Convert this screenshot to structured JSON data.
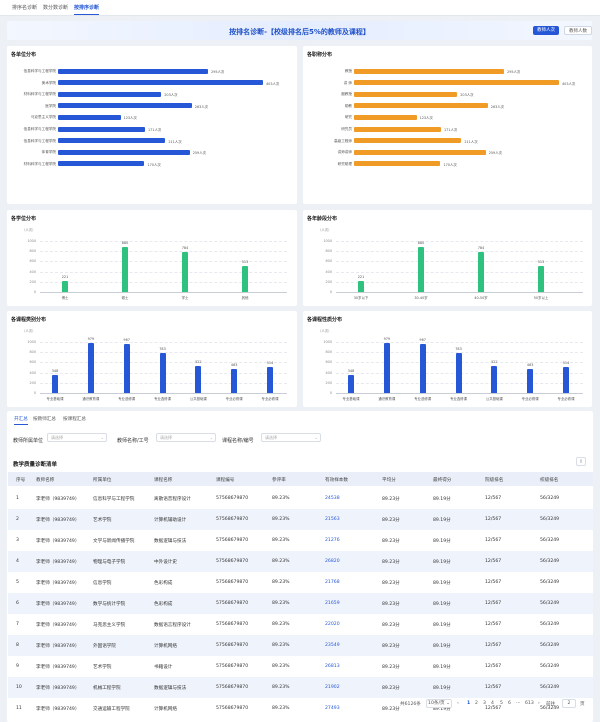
{
  "tabs": [
    "排序名诊断",
    "数分数诊断",
    "按排序诊断"
  ],
  "active_tab": 2,
  "header": {
    "title": "按排名诊断-【校级排名后5%的教师及课程】",
    "btn_primary": "教师人次",
    "btn_secondary": "教师人数"
  },
  "colors": {
    "blue": "#2557d6",
    "orange": "#ef9b25",
    "green": "#2ec27e"
  },
  "chart_data": [
    {
      "type": "bar",
      "orientation": "horizontal",
      "title": "各单位分布",
      "color": "#2557d6",
      "categories": [
        "信息科学与工程学院",
        "美术学院",
        "材料科学与工程学院",
        "医学院",
        "马克思主义学院",
        "信息科学与工程学院",
        "信息科学与工程学院",
        "体育学院",
        "材料科学与工程学院"
      ],
      "values": [
        295,
        403,
        203,
        263,
        123,
        171,
        211,
        259,
        170
      ],
      "labels": [
        "295人次",
        "403人次",
        "203人次",
        "263人次",
        "123人次",
        "171人次",
        "211人次",
        "259人次",
        "170人次"
      ]
    },
    {
      "type": "bar",
      "orientation": "horizontal",
      "title": "各职称分布",
      "color": "#ef9b25",
      "categories": [
        "教授",
        "讲 师",
        "副教授",
        "助教",
        "研究",
        "研究员",
        "高级工程师",
        "讲师讲师",
        "研究助理"
      ],
      "values": [
        295,
        403,
        203,
        263,
        123,
        171,
        211,
        259,
        170
      ],
      "labels": [
        "295人次",
        "403人次",
        "203人次",
        "263人次",
        "123人次",
        "171人次",
        "211人次",
        "259人次",
        "170人次"
      ]
    },
    {
      "type": "bar",
      "title": "各学位分布",
      "color": "#2ec27e",
      "unit": "（人次）",
      "ylim": [
        0,
        1000
      ],
      "yticks": [
        "1000",
        "800",
        "600",
        "400",
        "200",
        "0"
      ],
      "categories": [
        "博士",
        "硕士",
        "学士",
        "其他"
      ],
      "values": [
        221,
        880,
        784,
        513
      ]
    },
    {
      "type": "bar",
      "title": "各年龄段分布",
      "color": "#2ec27e",
      "unit": "（人次）",
      "ylim": [
        0,
        1000
      ],
      "yticks": [
        "1000",
        "800",
        "600",
        "400",
        "200",
        "0"
      ],
      "categories": [
        "30岁以下",
        "30-40岁",
        "40-50岁",
        "50岁以上"
      ],
      "values": [
        221,
        880,
        784,
        513
      ]
    },
    {
      "type": "bar",
      "title": "各课程类别分布",
      "color": "#2557d6",
      "unit": "（人次）",
      "ylim": [
        0,
        1000
      ],
      "yticks": [
        "1000",
        "800",
        "600",
        "400",
        "200",
        "0"
      ],
      "categories": [
        "专业基础课",
        "通识教育课",
        "专业选修课",
        "专业选修课",
        "公共基础课",
        "专业必修课",
        "专业必修课"
      ],
      "values": [
        348,
        979,
        967,
        783,
        522,
        463,
        514
      ]
    },
    {
      "type": "bar",
      "title": "各课程性质分布",
      "color": "#2557d6",
      "unit": "（人次）",
      "ylim": [
        0,
        1000
      ],
      "yticks": [
        "1000",
        "800",
        "600",
        "400",
        "200",
        "0"
      ],
      "categories": [
        "专业基础课",
        "通识教育课",
        "专业选修课",
        "专业选修课",
        "公共基础课",
        "专业必修课",
        "专业必修课"
      ],
      "values": [
        348,
        979,
        967,
        783,
        522,
        463,
        514
      ]
    }
  ],
  "sub_tabs": [
    "开汇总",
    "按教师汇总",
    "按课程汇总"
  ],
  "filters": [
    {
      "label": "教师所属单位",
      "placeholder": "请选择"
    },
    {
      "label": "教师名称/工号",
      "placeholder": "请选择"
    },
    {
      "label": "课程名称/编号",
      "placeholder": "请选择"
    }
  ],
  "table": {
    "title": "教学质量诊断清单",
    "export_icon": "⇪",
    "columns": [
      "序号",
      "教师名称",
      "所属单位",
      "课程名称",
      "课程编号",
      "参评率",
      "有效样本数",
      "平均分",
      "最终得分",
      "院级排名",
      "校级排名"
    ],
    "rows": [
      [
        "1",
        "李老师（9839749）",
        "信息科学与工程学院",
        "离散语音程序设计",
        "57568679870",
        "89.23%",
        "24538",
        "89.23分",
        "89.19分",
        "12/567",
        "56/3249"
      ],
      [
        "2",
        "李老师（9839749）",
        "艺术学院",
        "计算机辅助设计",
        "57568679870",
        "89.23%",
        "21563",
        "89.23分",
        "89.19分",
        "12/567",
        "56/3249"
      ],
      [
        "3",
        "李老师（9839749）",
        "文学与新闻传播学院",
        "数据逻辑与技法",
        "57568679870",
        "89.23%",
        "21276",
        "89.23分",
        "89.19分",
        "12/567",
        "56/3249"
      ],
      [
        "4",
        "李老师（9839749）",
        "物理与电子学院",
        "中外设计史",
        "57568679870",
        "89.23%",
        "26820",
        "89.23分",
        "89.19分",
        "12/567",
        "56/3249"
      ],
      [
        "5",
        "李老师（9839749）",
        "信息学院",
        "色彩构成",
        "57568679870",
        "89.23%",
        "21768",
        "89.23分",
        "89.19分",
        "12/567",
        "56/3249"
      ],
      [
        "6",
        "李老师（9839749）",
        "数学与统计学院",
        "色彩构成",
        "57568679870",
        "89.23%",
        "21659",
        "89.23分",
        "89.19分",
        "12/567",
        "56/3249"
      ],
      [
        "7",
        "李老师（9839749）",
        "马克思主义学院",
        "数据语言程序设计",
        "57568679870",
        "89.23%",
        "22020",
        "89.23分",
        "89.19分",
        "12/567",
        "56/3249"
      ],
      [
        "8",
        "李老师（9839749）",
        "外国语学院",
        "计算机网络",
        "57568679870",
        "89.23%",
        "23549",
        "89.23分",
        "89.19分",
        "12/567",
        "56/3249"
      ],
      [
        "9",
        "李老师（9839749）",
        "艺术学院",
        "书籍设计",
        "57568679870",
        "89.23%",
        "26813",
        "89.23分",
        "89.19分",
        "12/567",
        "56/3249"
      ],
      [
        "10",
        "李老师（9839749）",
        "机械工程学院",
        "数据逻辑与技法",
        "57568679870",
        "89.23%",
        "21902",
        "89.23分",
        "89.19分",
        "12/567",
        "56/3249"
      ],
      [
        "11",
        "李老师（9839749）",
        "交通运输工程学院",
        "计算机网络",
        "57568679870",
        "89.23%",
        "27493",
        "89.23分",
        "89.19分",
        "12/567",
        "56/3249"
      ]
    ]
  },
  "pagination": {
    "total": "共6126条",
    "page_size": "10条/页",
    "pages": [
      "1",
      "2",
      "3",
      "4",
      "5",
      "6",
      "···",
      "613"
    ],
    "prev": "‹",
    "next": "›",
    "goto_label": "前往",
    "goto_value": "2",
    "page_suffix": "页"
  }
}
